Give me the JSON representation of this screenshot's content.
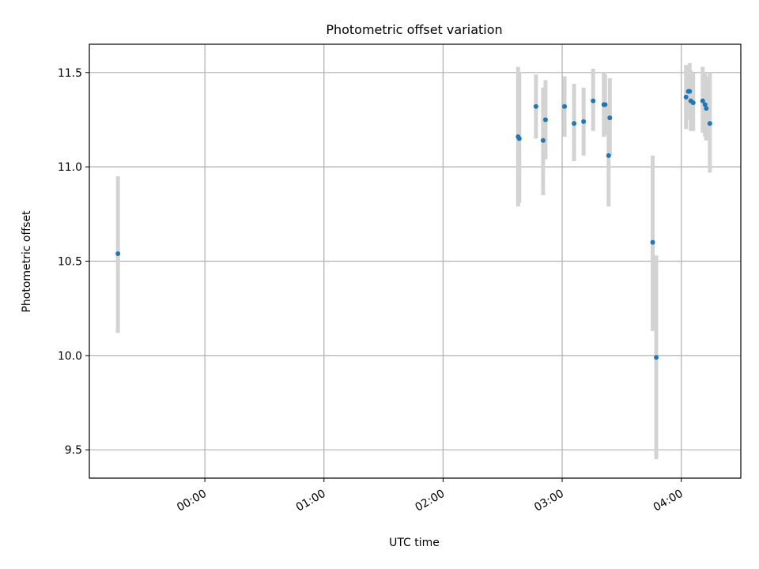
{
  "chart_data": {
    "type": "scatter",
    "title": "Photometric offset variation",
    "xlabel": "UTC time",
    "ylabel": "Photometric offset",
    "x_unit": "hours (UTC)",
    "xlim": [
      -0.97,
      4.5
    ],
    "ylim": [
      9.35,
      11.65
    ],
    "x_ticks": [
      {
        "value": 0,
        "label": "00:00"
      },
      {
        "value": 1,
        "label": "01:00"
      },
      {
        "value": 2,
        "label": "02:00"
      },
      {
        "value": 3,
        "label": "03:00"
      },
      {
        "value": 4,
        "label": "04:00"
      }
    ],
    "y_ticks": [
      {
        "value": 9.5,
        "label": "9.5"
      },
      {
        "value": 10.0,
        "label": "10.0"
      },
      {
        "value": 10.5,
        "label": "10.5"
      },
      {
        "value": 11.0,
        "label": "11.0"
      },
      {
        "value": 11.5,
        "label": "11.5"
      }
    ],
    "grid": true,
    "colors": {
      "points": "#1f77b4",
      "errorbars": "#d3d3d3",
      "grid": "#b0b0b0"
    },
    "series": [
      {
        "points": [
          {
            "x": -0.73,
            "y": 10.54,
            "lo": 10.12,
            "hi": 10.95
          },
          {
            "x": 2.63,
            "y": 11.16,
            "lo": 10.79,
            "hi": 11.53
          },
          {
            "x": 2.64,
            "y": 11.15,
            "lo": 10.81,
            "hi": 11.5
          },
          {
            "x": 2.78,
            "y": 11.32,
            "lo": 11.15,
            "hi": 11.49
          },
          {
            "x": 2.84,
            "y": 11.14,
            "lo": 10.85,
            "hi": 11.42
          },
          {
            "x": 2.86,
            "y": 11.25,
            "lo": 11.04,
            "hi": 11.46
          },
          {
            "x": 3.02,
            "y": 11.32,
            "lo": 11.16,
            "hi": 11.48
          },
          {
            "x": 3.1,
            "y": 11.23,
            "lo": 11.03,
            "hi": 11.44
          },
          {
            "x": 3.18,
            "y": 11.24,
            "lo": 11.06,
            "hi": 11.42
          },
          {
            "x": 3.26,
            "y": 11.35,
            "lo": 11.19,
            "hi": 11.52
          },
          {
            "x": 3.35,
            "y": 11.33,
            "lo": 11.16,
            "hi": 11.5
          },
          {
            "x": 3.36,
            "y": 11.33,
            "lo": 11.17,
            "hi": 11.49
          },
          {
            "x": 3.39,
            "y": 11.06,
            "lo": 10.79,
            "hi": 11.34
          },
          {
            "x": 3.4,
            "y": 11.26,
            "lo": 11.06,
            "hi": 11.47
          },
          {
            "x": 3.76,
            "y": 10.6,
            "lo": 10.13,
            "hi": 11.06
          },
          {
            "x": 3.79,
            "y": 9.99,
            "lo": 9.45,
            "hi": 10.53
          },
          {
            "x": 4.04,
            "y": 11.37,
            "lo": 11.2,
            "hi": 11.54
          },
          {
            "x": 4.06,
            "y": 11.4,
            "lo": 11.26,
            "hi": 11.54
          },
          {
            "x": 4.07,
            "y": 11.4,
            "lo": 11.25,
            "hi": 11.55
          },
          {
            "x": 4.08,
            "y": 11.35,
            "lo": 11.19,
            "hi": 11.51
          },
          {
            "x": 4.1,
            "y": 11.34,
            "lo": 11.19,
            "hi": 11.5
          },
          {
            "x": 4.18,
            "y": 11.35,
            "lo": 11.18,
            "hi": 11.53
          },
          {
            "x": 4.2,
            "y": 11.33,
            "lo": 11.16,
            "hi": 11.5
          },
          {
            "x": 4.21,
            "y": 11.31,
            "lo": 11.14,
            "hi": 11.48
          },
          {
            "x": 4.24,
            "y": 11.23,
            "lo": 10.97,
            "hi": 11.5
          }
        ]
      }
    ]
  }
}
